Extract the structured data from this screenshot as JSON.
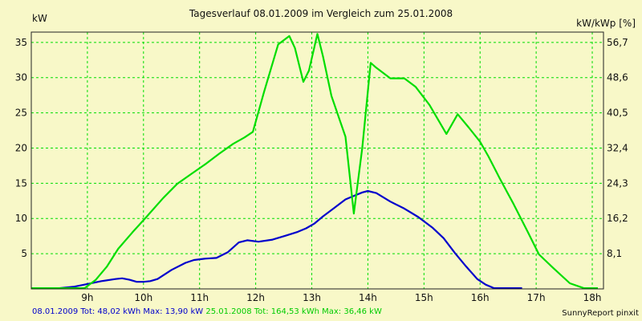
{
  "chart_data": {
    "type": "line",
    "title": "Tagesverlauf 08.01.2009 im Vergleich zum 25.01.2008",
    "ylabel_left": "kW",
    "ylabel_right": "kW/kWp [%]",
    "ylim": [
      0,
      36.46
    ],
    "y_ticks": [
      5,
      10,
      15,
      20,
      25,
      30,
      35
    ],
    "y2_ticks": [
      "8,1",
      "16,2",
      "24,3",
      "32,4",
      "40,5",
      "48,6",
      "56,7"
    ],
    "xlim": [
      8.0,
      18.2
    ],
    "x_ticks": [
      "9h",
      "10h",
      "11h",
      "12h",
      "13h",
      "14h",
      "15h",
      "16h",
      "17h",
      "18h"
    ],
    "grid": true,
    "series": [
      {
        "name": "08.01.2009",
        "color": "#0000cc",
        "x": [
          8.0,
          8.5,
          8.75,
          9.0,
          9.25,
          9.5,
          9.62,
          9.75,
          9.88,
          10.0,
          10.12,
          10.25,
          10.5,
          10.75,
          10.9,
          11.1,
          11.3,
          11.5,
          11.7,
          11.85,
          12.05,
          12.3,
          12.55,
          12.75,
          12.9,
          13.05,
          13.2,
          13.4,
          13.6,
          13.75,
          13.9,
          14.0,
          14.15,
          14.4,
          14.65,
          14.9,
          15.15,
          15.35,
          15.55,
          15.75,
          15.95,
          16.1,
          16.25,
          16.5,
          16.75
        ],
        "y": [
          0.1,
          0.1,
          0.3,
          0.7,
          1.1,
          1.4,
          1.5,
          1.3,
          1.0,
          1.0,
          1.1,
          1.4,
          2.7,
          3.7,
          4.1,
          4.3,
          4.4,
          5.2,
          6.6,
          6.9,
          6.7,
          7.0,
          7.6,
          8.1,
          8.6,
          9.3,
          10.3,
          11.5,
          12.7,
          13.2,
          13.7,
          13.9,
          13.6,
          12.4,
          11.4,
          10.2,
          8.7,
          7.2,
          5.1,
          3.2,
          1.4,
          0.6,
          0.1,
          0.1,
          0.1
        ]
      },
      {
        "name": "25.01.2008",
        "color": "#00dd00",
        "x": [
          8.0,
          8.7,
          8.95,
          9.15,
          9.35,
          9.55,
          9.8,
          10.05,
          10.35,
          10.6,
          10.85,
          11.1,
          11.35,
          11.6,
          11.8,
          11.95,
          12.15,
          12.4,
          12.6,
          12.7,
          12.85,
          12.95,
          13.1,
          13.2,
          13.35,
          13.6,
          13.75,
          13.9,
          14.05,
          14.15,
          14.4,
          14.65,
          14.85,
          15.1,
          15.4,
          15.6,
          15.8,
          16.0,
          16.15,
          16.35,
          16.6,
          16.85,
          17.05,
          17.3,
          17.6,
          17.85,
          18.1
        ],
        "y": [
          0.1,
          0.1,
          0.1,
          1.3,
          3.2,
          5.7,
          8.0,
          10.2,
          12.9,
          14.9,
          16.3,
          17.7,
          19.2,
          20.6,
          21.5,
          22.3,
          28.0,
          34.7,
          35.9,
          34.2,
          29.4,
          31.0,
          36.2,
          33.0,
          27.4,
          21.6,
          10.7,
          20.0,
          32.1,
          31.4,
          29.9,
          29.9,
          28.7,
          26.1,
          22.0,
          24.8,
          22.9,
          20.9,
          18.8,
          15.7,
          12.0,
          8.1,
          4.9,
          3.0,
          0.8,
          0.1,
          0.1
        ]
      }
    ],
    "footer": {
      "series1_text": "08.01.2009 Tot: 48,02 kWh Max: 13,90 kW",
      "series2_text": "25.01.2008 Tot: 164,53 kWh Max: 36,46 kW",
      "credit": "SunnyReport pinxit"
    }
  }
}
